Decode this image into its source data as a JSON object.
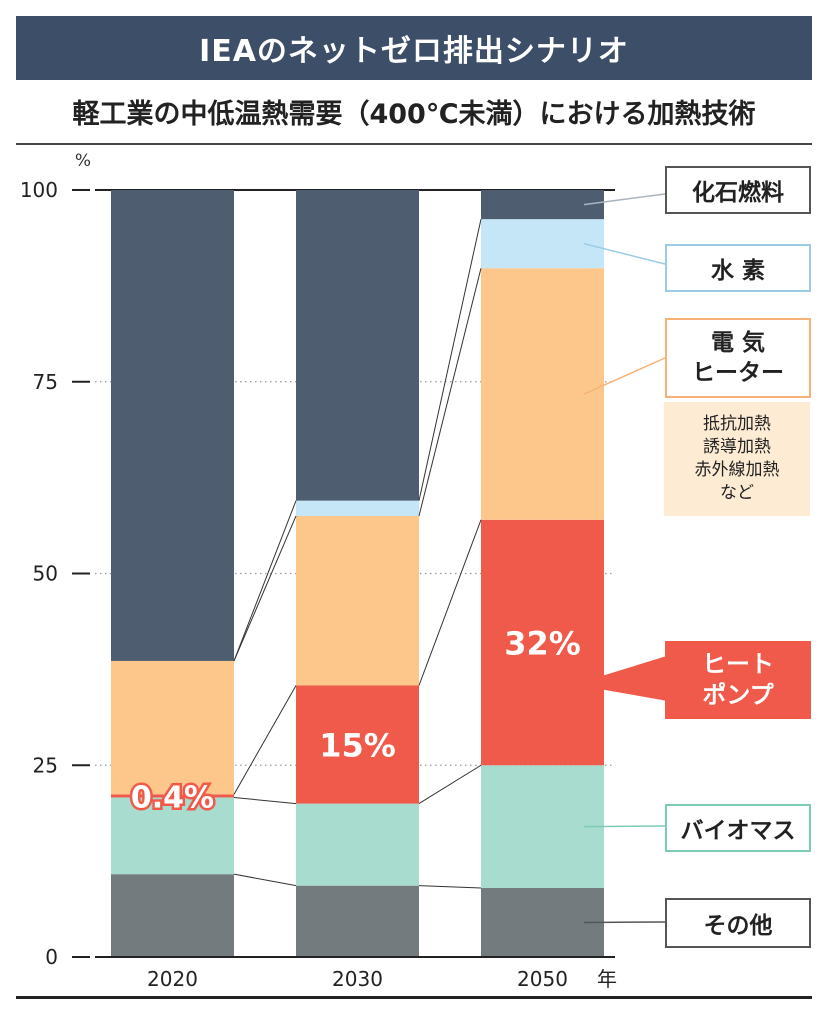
{
  "header": {
    "title": "IEAのネットゼロ排出シナリオ",
    "subtitle": "軽工業の中低温熱需要（400℃未満）における加熱技術"
  },
  "labels": {
    "fossil": "化石燃料",
    "hydrogen": "水 素",
    "electric_line1": "電 気",
    "electric_line2": "ヒーター",
    "electric_notes": [
      "抵抗加熱",
      "誘導加熱",
      "赤外線加熱",
      "など"
    ],
    "heatpump_line1": "ヒート",
    "heatpump_line2": "ポンプ",
    "biomass": "バイオマス",
    "other": "その他"
  },
  "chart_data": {
    "type": "bar",
    "stacked": true,
    "categories": [
      "2020",
      "2030",
      "2050"
    ],
    "xlabel": "年",
    "ylabel": "%",
    "ylim": [
      0,
      100
    ],
    "yticks": [
      0,
      25,
      50,
      75,
      100
    ],
    "grid": "dotted horizontal",
    "series": [
      {
        "name": "その他",
        "color": "#737b7e",
        "values": [
          10.8,
          9.3,
          9.0
        ]
      },
      {
        "name": "バイオマス",
        "color": "#a8dccf",
        "values": [
          10.0,
          10.7,
          16.0
        ]
      },
      {
        "name": "ヒートポンプ",
        "color": "#f05a4a",
        "values": [
          0.4,
          15.4,
          32.0
        ]
      },
      {
        "name": "電気ヒーター",
        "color": "#fdc68a",
        "values": [
          17.4,
          22.1,
          32.8
        ]
      },
      {
        "name": "水素",
        "color": "#c4e6f7",
        "values": [
          0.0,
          2.0,
          6.4
        ]
      },
      {
        "name": "化石燃料",
        "color": "#4e5e70",
        "values": [
          61.4,
          40.5,
          3.8
        ]
      }
    ],
    "annotations": [
      {
        "category": "2020",
        "series": "ヒートポンプ",
        "text": "0.4%"
      },
      {
        "category": "2030",
        "series": "ヒートポンプ",
        "text": "15%"
      },
      {
        "category": "2050",
        "series": "ヒートポンプ",
        "text": "32%"
      }
    ]
  }
}
